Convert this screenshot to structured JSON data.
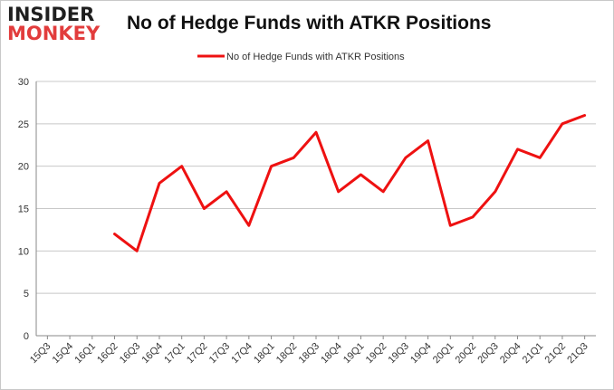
{
  "brand": {
    "logo_line1": "INSIDER",
    "logo_line2": "MONKEY"
  },
  "colors": {
    "series": "#ee1111",
    "grid": "#c8c8c8",
    "axis": "#888888",
    "logo_accent": "#e23c3c"
  },
  "chart_data": {
    "type": "line",
    "title": "No of Hedge Funds with ATKR Positions",
    "xlabel": "",
    "ylabel": "",
    "ylim": [
      0,
      30
    ],
    "yticks": [
      0,
      5,
      10,
      15,
      20,
      25,
      30
    ],
    "grid": true,
    "legend_position": "top-center",
    "categories": [
      "15Q3",
      "15Q4",
      "16Q1",
      "16Q2",
      "16Q3",
      "16Q4",
      "17Q1",
      "17Q2",
      "17Q3",
      "17Q4",
      "18Q1",
      "18Q2",
      "18Q3",
      "18Q4",
      "19Q1",
      "19Q2",
      "19Q3",
      "19Q4",
      "20Q1",
      "20Q2",
      "20Q3",
      "20Q4",
      "21Q1",
      "21Q2",
      "21Q3"
    ],
    "series": [
      {
        "name": "No of Hedge Funds with ATKR Positions",
        "values": [
          null,
          null,
          null,
          12,
          10,
          18,
          20,
          15,
          17,
          13,
          20,
          21,
          24,
          17,
          19,
          17,
          21,
          23,
          13,
          14,
          17,
          22,
          21,
          25,
          26
        ]
      }
    ]
  }
}
